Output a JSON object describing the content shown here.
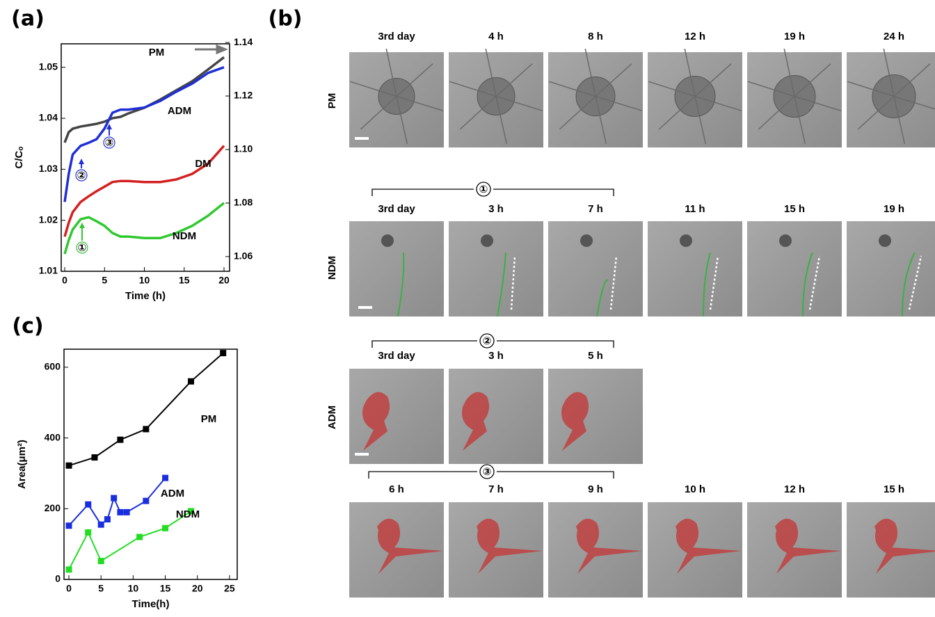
{
  "chart_data": [
    {
      "type": "line",
      "label": "(a)",
      "xlabel": "Time (h)",
      "ylabel": "C/Cₒ",
      "x": [
        0,
        0.5,
        1,
        2,
        3,
        4,
        5,
        6,
        7,
        8,
        10,
        12,
        14,
        16,
        18,
        20
      ],
      "xlim": [
        -0.44,
        20.7
      ],
      "xticks": [
        0,
        5,
        10,
        15,
        20
      ],
      "ylim": [
        1.01,
        1.0546
      ],
      "yticks": [
        1.01,
        1.02,
        1.03,
        1.04,
        1.05
      ],
      "y2lim": [
        1.0545,
        1.1395
      ],
      "y2ticks": [
        1.06,
        1.08,
        {
          "value": 1.1,
          "label": "1.10"
        },
        1.12,
        1.14
      ],
      "annotations": [
        "①",
        "②",
        "③"
      ],
      "series": [
        {
          "name": "PM",
          "color": "#444444",
          "axis": "y2",
          "values": [
            1.1026,
            1.1065,
            1.1078,
            1.1086,
            1.1091,
            1.1096,
            1.1104,
            1.1117,
            1.1122,
            1.1135,
            1.1156,
            1.1187,
            1.1221,
            1.1255,
            1.1299,
            1.1345
          ]
        },
        {
          "name": "ADM",
          "color": "#1f2fd6",
          "values": [
            1.0236,
            1.0291,
            1.0329,
            1.0346,
            1.0352,
            1.0359,
            1.038,
            1.0411,
            1.0417,
            1.0417,
            1.0421,
            1.0434,
            1.0452,
            1.0468,
            1.0489,
            1.05
          ]
        },
        {
          "name": "DM",
          "color": "#d42020",
          "values": [
            1.0168,
            1.0195,
            1.0216,
            1.0236,
            1.0247,
            1.0257,
            1.0266,
            1.0275,
            1.0277,
            1.0277,
            1.0275,
            1.0275,
            1.028,
            1.0291,
            1.0311,
            1.0346
          ]
        },
        {
          "name": "NDM",
          "color": "#2fc82f",
          "values": [
            1.0134,
            1.0161,
            1.0182,
            1.0202,
            1.0206,
            1.0198,
            1.0189,
            1.0175,
            1.0168,
            1.0168,
            1.0165,
            1.0165,
            1.0175,
            1.0189,
            1.0209,
            1.0234
          ]
        }
      ]
    },
    {
      "type": "line",
      "label": "(c)",
      "xlabel": "Time(h)",
      "ylabel": "Area(μm²)",
      "marker": "square",
      "xlim": [
        -0.76,
        26.2
      ],
      "xticks": [
        0,
        5,
        10,
        15,
        20,
        25
      ],
      "ylim": [
        0,
        651
      ],
      "yticks": [
        0,
        200,
        400,
        600
      ],
      "series": [
        {
          "name": "PM",
          "color": "#000000",
          "x": [
            0,
            4,
            8,
            12,
            19,
            24
          ],
          "values": [
            322,
            345,
            395,
            425,
            560,
            640
          ]
        },
        {
          "name": "ADM",
          "color": "#1a2ee0",
          "x": [
            0,
            3,
            5,
            6,
            7,
            8,
            9,
            12,
            15
          ],
          "values": [
            152,
            212,
            155,
            170,
            230,
            190,
            190,
            222,
            287
          ]
        },
        {
          "name": "NDM",
          "color": "#22dd22",
          "x": [
            0,
            3,
            5,
            11,
            15,
            19
          ],
          "values": [
            28,
            133,
            52,
            120,
            145,
            193
          ]
        }
      ]
    }
  ],
  "panel_b": {
    "label": "(b)",
    "groups": [
      {
        "row": "PM",
        "times": [
          "3rd day",
          "4 h",
          "8  h",
          "12 h",
          "19 h",
          "24 h"
        ]
      },
      {
        "row": "NDM",
        "bracket": "①",
        "times": [
          "3rd day",
          "3 h",
          "7  h",
          "11 h",
          "15 h",
          "19 h"
        ]
      },
      {
        "row": "ADM",
        "bracket": "②",
        "times": [
          "3rd day",
          "3 h",
          "5 h"
        ]
      },
      {
        "bracket": "③",
        "times": [
          "6 h",
          "7 h",
          "9 h",
          "10 h",
          "12 h",
          "15 h"
        ]
      }
    ]
  }
}
